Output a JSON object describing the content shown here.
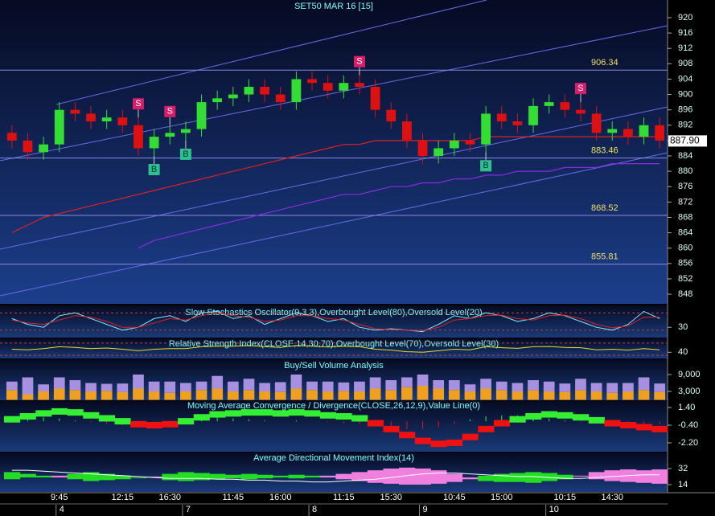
{
  "chart_data": [
    {
      "type": "candlestick",
      "title": "SET50 MAR 16   [15]",
      "categories": [
        null,
        null,
        null,
        "9:45",
        null,
        null,
        null,
        "12:15",
        null,
        null,
        "16:30",
        null,
        null,
        null,
        "11:45",
        null,
        null,
        "16:00",
        null,
        null,
        null,
        "11:15",
        null,
        null,
        "15:30",
        null,
        null,
        null,
        "10:45",
        null,
        null,
        "15:00",
        null,
        null,
        null,
        "10:15",
        null,
        null,
        "14:30",
        null,
        null,
        null
      ],
      "dates": [
        null,
        null,
        null,
        4,
        null,
        null,
        null,
        null,
        null,
        null,
        null,
        7,
        null,
        null,
        null,
        null,
        null,
        null,
        null,
        8,
        null,
        null,
        null,
        null,
        null,
        null,
        9,
        null,
        null,
        null,
        null,
        null,
        null,
        null,
        10,
        null,
        null,
        null,
        null,
        null,
        null,
        null
      ],
      "open": [
        890,
        888,
        885,
        887,
        896,
        895,
        893,
        894,
        892,
        886,
        889,
        890,
        891,
        898,
        899,
        900,
        902,
        900,
        898,
        904,
        903,
        901,
        903,
        902,
        896,
        893,
        888,
        884,
        886,
        888,
        887,
        895,
        893,
        892,
        897,
        898,
        896,
        895,
        890,
        891,
        889,
        892
      ],
      "high": [
        892,
        890,
        889,
        898,
        898,
        897,
        896,
        896,
        894,
        891,
        892,
        893,
        900,
        901,
        902,
        904,
        904,
        902,
        906,
        906,
        905,
        905,
        905,
        904,
        898,
        895,
        890,
        888,
        890,
        890,
        897,
        897,
        895,
        899,
        900,
        900,
        898,
        897,
        893,
        893,
        894,
        894
      ],
      "low": [
        886,
        883,
        883,
        885,
        893,
        891,
        891,
        890,
        884,
        884,
        887,
        888,
        889,
        896,
        897,
        898,
        898,
        896,
        896,
        901,
        899,
        899,
        900,
        894,
        891,
        886,
        882,
        882,
        884,
        885,
        885,
        891,
        890,
        890,
        895,
        894,
        893,
        888,
        888,
        887,
        887,
        886
      ],
      "close": [
        888,
        885,
        887,
        896,
        895,
        893,
        894,
        892,
        886,
        889,
        890,
        891,
        898,
        899,
        900,
        902,
        900,
        898,
        904,
        903,
        901,
        903,
        902,
        896,
        893,
        888,
        884,
        886,
        888,
        887,
        895,
        893,
        892,
        897,
        898,
        896,
        895,
        890,
        891,
        889,
        892,
        888
      ],
      "up_color": "#33dd33",
      "down_color": "#dd1111",
      "signals": [
        null,
        null,
        null,
        null,
        null,
        null,
        null,
        null,
        "S",
        "B",
        "S",
        "B",
        null,
        null,
        null,
        null,
        null,
        null,
        null,
        null,
        null,
        null,
        "S",
        null,
        null,
        null,
        null,
        null,
        null,
        null,
        "B",
        null,
        null,
        null,
        null,
        null,
        "S",
        null,
        null,
        null,
        null,
        null
      ],
      "overlays": [
        {
          "color": "#e02020",
          "values": [
            864,
            866,
            868,
            869,
            870,
            871,
            872,
            873,
            874,
            875,
            876,
            877,
            878,
            879,
            880,
            881,
            882,
            883,
            884,
            885,
            886,
            887,
            887,
            888,
            888,
            888,
            888,
            888,
            888,
            888,
            889,
            889,
            889,
            889,
            889,
            889,
            889,
            889,
            889,
            889,
            889,
            889
          ]
        },
        {
          "color": "#8a2be2",
          "values": [
            null,
            null,
            null,
            null,
            null,
            null,
            null,
            null,
            860,
            862,
            863,
            864,
            865,
            866,
            867,
            868,
            869,
            870,
            871,
            872,
            873,
            874,
            874,
            875,
            876,
            876,
            877,
            877,
            878,
            878,
            879,
            879,
            880,
            880,
            880,
            881,
            881,
            881,
            882,
            882,
            882,
            882
          ]
        }
      ],
      "levels": [
        906.34,
        883.46,
        868.52,
        855.81
      ],
      "last_price": {
        "value": 887.9,
        "label": "887.90"
      },
      "ylim": [
        845.5,
        924.6
      ],
      "yticks": [
        920,
        916,
        912,
        908,
        904,
        900,
        896,
        892,
        888,
        884,
        880,
        876,
        872,
        868,
        864,
        860,
        856,
        852,
        848
      ]
    },
    {
      "type": "line",
      "title": "Slow Stochastics Oscillator(9,3,3),Overbought Level(80),Oversold Level(20)",
      "ylim": [
        0,
        100
      ],
      "yticks": [
        30
      ],
      "levels": [
        80,
        20
      ],
      "series": [
        {
          "color": "#7fe8ff",
          "values": [
            60,
            40,
            30,
            70,
            80,
            60,
            40,
            20,
            30,
            60,
            70,
            50,
            80,
            85,
            60,
            70,
            40,
            60,
            80,
            70,
            50,
            60,
            30,
            20,
            25,
            20,
            15,
            40,
            70,
            60,
            80,
            70,
            50,
            60,
            80,
            70,
            50,
            30,
            20,
            40,
            85,
            60
          ]
        },
        {
          "color": "#e02020",
          "values": [
            55,
            45,
            40,
            55,
            70,
            65,
            50,
            30,
            30,
            45,
            60,
            55,
            70,
            80,
            70,
            65,
            50,
            55,
            70,
            70,
            60,
            55,
            40,
            25,
            22,
            20,
            18,
            30,
            55,
            60,
            70,
            72,
            60,
            55,
            70,
            72,
            60,
            40,
            28,
            35,
            65,
            65
          ]
        }
      ]
    },
    {
      "type": "line",
      "title": "Relative Strength Index(CLOSE,14,30,70),Overbought Level(70),Oversold Level(30)",
      "ylim": [
        20,
        80
      ],
      "yticks": [
        40
      ],
      "levels": [
        70,
        30
      ],
      "series": [
        {
          "color": "#e8e020",
          "values": [
            50,
            48,
            52,
            58,
            56,
            52,
            54,
            50,
            45,
            50,
            52,
            52,
            58,
            60,
            60,
            62,
            58,
            56,
            62,
            60,
            57,
            60,
            58,
            50,
            47,
            42,
            40,
            45,
            50,
            48,
            58,
            55,
            53,
            58,
            59,
            56,
            55,
            48,
            50,
            47,
            52,
            48
          ]
        }
      ]
    },
    {
      "type": "bar",
      "title": "Buy/Sell Volume Analysis",
      "ylim": [
        0,
        12000
      ],
      "yticks": [
        {
          "value": 9000,
          "label": "9,000"
        },
        {
          "value": 3000,
          "label": "3,000"
        }
      ],
      "series": [
        {
          "color": "#f0a020",
          "values": [
            3500,
            2000,
            3000,
            4000,
            3500,
            3000,
            3200,
            2800,
            4000,
            3000,
            2500,
            3000,
            3500,
            4000,
            3000,
            3500,
            3000,
            2800,
            4000,
            3500,
            3000,
            3200,
            3000,
            4000,
            3500,
            4500,
            5000,
            4000,
            3500,
            3000,
            4000,
            3500,
            3000,
            3500,
            3000,
            2800,
            3500,
            3000,
            2500,
            3000,
            3500,
            2800
          ]
        },
        {
          "color": "#a890e0",
          "values": [
            3000,
            6000,
            2500,
            4000,
            3500,
            3000,
            2500,
            3000,
            5000,
            3500,
            4000,
            3000,
            3000,
            4500,
            3500,
            4000,
            3000,
            3500,
            5000,
            3000,
            3500,
            3000,
            3500,
            4000,
            3500,
            3500,
            4000,
            3000,
            3500,
            2500,
            3500,
            3000,
            3000,
            3500,
            3500,
            3000,
            4000,
            3000,
            3500,
            3000,
            4500,
            3000
          ]
        }
      ]
    },
    {
      "type": "macd",
      "title": "Moving Average Convergence / Divergence(CLOSE,26,12,9),Value Line(0)",
      "ylim": [
        -3.1,
        2.0
      ],
      "yticks": [
        {
          "value": 1.4,
          "label": "1.40"
        },
        {
          "value": -0.4,
          "label": "-0.40"
        },
        {
          "value": -2.2,
          "label": "-2.20"
        }
      ],
      "up_color": "#33ee33",
      "down_color": "#ee1111",
      "line": [
        0.2,
        0.5,
        0.8,
        1.0,
        0.9,
        0.6,
        0.3,
        0.0,
        -0.3,
        -0.4,
        -0.3,
        0.0,
        0.4,
        0.7,
        0.8,
        0.9,
        0.9,
        0.8,
        0.9,
        0.8,
        0.6,
        0.5,
        0.3,
        -0.2,
        -0.8,
        -1.4,
        -2.0,
        -2.3,
        -2.2,
        -1.6,
        -0.8,
        -0.2,
        0.2,
        0.5,
        0.7,
        0.6,
        0.4,
        0.1,
        -0.2,
        -0.4,
        -0.6,
        -0.8
      ],
      "histogram": [
        0.3,
        0.4,
        0.4,
        0.3,
        0.1,
        -0.1,
        -0.3,
        -0.4,
        -0.4,
        -0.3,
        0.0,
        0.3,
        0.5,
        0.5,
        0.3,
        0.2,
        0.1,
        0.0,
        0.1,
        0.0,
        -0.1,
        -0.2,
        -0.3,
        -0.5,
        -0.7,
        -0.8,
        -0.8,
        -0.6,
        -0.3,
        0.2,
        0.5,
        0.6,
        0.6,
        0.5,
        0.3,
        0.1,
        -0.1,
        -0.2,
        -0.3,
        -0.3,
        -0.3,
        -0.3
      ]
    },
    {
      "type": "adx",
      "title": "Average Directional Movement Index(14)",
      "ylim": [
        5,
        40
      ],
      "yticks": [
        32,
        14
      ],
      "plus_color": "#22dd22",
      "minus_color": "#f080e0",
      "adx_color": "#ffffff",
      "plus_di": [
        28,
        26,
        24,
        22,
        26,
        28,
        26,
        24,
        22,
        22,
        26,
        28,
        27,
        26,
        25,
        26,
        25,
        24,
        25,
        24,
        22,
        20,
        18,
        16,
        15,
        14,
        14,
        15,
        17,
        20,
        24,
        26,
        27,
        28,
        27,
        25,
        23,
        20,
        18,
        17,
        16,
        15
      ],
      "minus_di": [
        20,
        22,
        22,
        24,
        20,
        18,
        19,
        20,
        22,
        23,
        19,
        18,
        19,
        20,
        21,
        20,
        21,
        22,
        21,
        22,
        24,
        26,
        28,
        30,
        32,
        33,
        32,
        30,
        26,
        22,
        18,
        17,
        17,
        16,
        18,
        20,
        24,
        28,
        30,
        31,
        30,
        31
      ],
      "adx": [
        30,
        30,
        29,
        28,
        27,
        26,
        25,
        24,
        23,
        22,
        21,
        21,
        21,
        20,
        20,
        19,
        19,
        18,
        18,
        17,
        17,
        18,
        19,
        20,
        22,
        24,
        26,
        27,
        27,
        26,
        25,
        24,
        23,
        23,
        22,
        21,
        21,
        22,
        23,
        24,
        25,
        25
      ]
    }
  ]
}
